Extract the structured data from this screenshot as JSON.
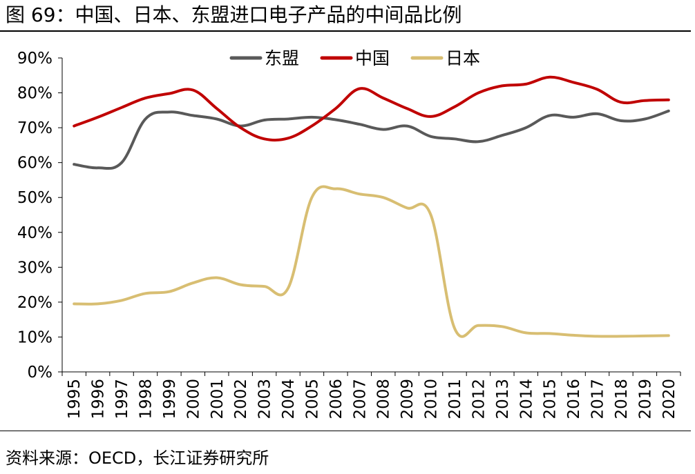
{
  "figure": {
    "title": "图 69：中国、日本、东盟进口电子产品的中间品比例",
    "source": "资料来源：OECD，长江证券研究所"
  },
  "chart_data": {
    "type": "line",
    "title": "",
    "xlabel": "",
    "ylabel": "",
    "x": [
      "1995",
      "1996",
      "1997",
      "1998",
      "1999",
      "2000",
      "2001",
      "2002",
      "2003",
      "2004",
      "2005",
      "2006",
      "2007",
      "2008",
      "2009",
      "2010",
      "2011",
      "2012",
      "2013",
      "2014",
      "2015",
      "2016",
      "2017",
      "2018",
      "2019",
      "2020"
    ],
    "ylim": [
      0,
      90
    ],
    "yticks": [
      0,
      10,
      20,
      30,
      40,
      50,
      60,
      70,
      80,
      90
    ],
    "ytick_labels": [
      "0%",
      "10%",
      "20%",
      "30%",
      "40%",
      "50%",
      "60%",
      "70%",
      "80%",
      "90%"
    ],
    "grid": false,
    "legend_position": "top-center",
    "series": [
      {
        "name": "东盟",
        "color": "#595959",
        "values": [
          59.5,
          58.5,
          60,
          72.5,
          74.5,
          73.5,
          72.5,
          70.5,
          72.2,
          72.5,
          73,
          72.3,
          71,
          69.5,
          70.5,
          67.5,
          66.8,
          66,
          67.8,
          70,
          73.5,
          73,
          74,
          72,
          72.5,
          74.8
        ]
      },
      {
        "name": "中国",
        "color": "#C00000",
        "values": [
          70.5,
          73,
          75.8,
          78.5,
          79.8,
          80.8,
          75.5,
          70,
          66.8,
          67,
          70.5,
          75.5,
          81.2,
          78.5,
          75.5,
          73.2,
          76,
          80,
          82,
          82.5,
          84.5,
          83,
          81,
          77.3,
          77.8,
          78
        ]
      },
      {
        "name": "日本",
        "color": "#D8BE72",
        "values": [
          19.5,
          19.5,
          20.5,
          22.5,
          23,
          25.5,
          27,
          25,
          24.5,
          24,
          50,
          52.5,
          51,
          50,
          47,
          45,
          12.5,
          13.3,
          13,
          11.2,
          11,
          10.5,
          10.2,
          10.2,
          10.3,
          10.4
        ]
      }
    ]
  }
}
